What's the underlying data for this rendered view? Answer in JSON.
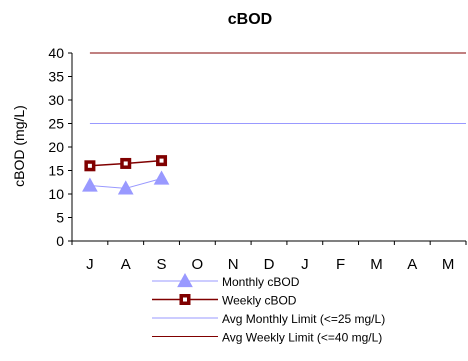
{
  "chart_data": {
    "type": "line",
    "title": "cBOD",
    "xlabel": "",
    "ylabel": "cBOD (mg/L)",
    "categories": [
      "J",
      "A",
      "S",
      "O",
      "N",
      "D",
      "J",
      "F",
      "M",
      "A",
      "M"
    ],
    "ylim": [
      0,
      40
    ],
    "yticks": [
      0,
      5,
      10,
      15,
      20,
      25,
      30,
      35,
      40
    ],
    "grid": false,
    "legend_position": "bottom",
    "series": [
      {
        "name": "Monthly cBOD",
        "values": [
          11.8,
          11.2,
          13.3,
          null,
          null,
          null,
          null,
          null,
          null,
          null,
          null
        ],
        "color": "#9999ff",
        "marker": "triangle"
      },
      {
        "name": "Weekly cBOD",
        "values": [
          16.0,
          16.5,
          17.1,
          null,
          null,
          null,
          null,
          null,
          null,
          null,
          null
        ],
        "color": "#800000",
        "marker": "square"
      },
      {
        "name": "Avg Monthly Limit (<=25 mg/L)",
        "constant": 25,
        "color": "#9999ff",
        "marker": "none"
      },
      {
        "name": "Avg Weekly Limit (<=40 mg/L)",
        "constant": 40,
        "color": "#800000",
        "marker": "none"
      }
    ]
  }
}
